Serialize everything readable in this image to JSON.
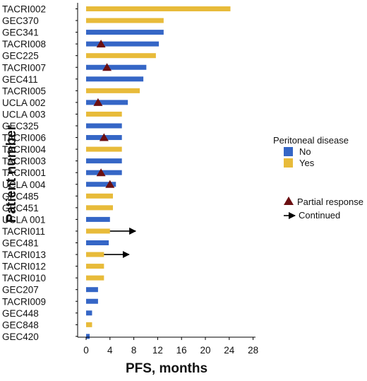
{
  "chart_data": {
    "type": "bar",
    "orientation": "horizontal",
    "xlabel": "PFS, months",
    "ylabel": "Patient number",
    "xlim": [
      0,
      28
    ],
    "xticks": [
      0,
      4,
      8,
      12,
      16,
      20,
      24,
      28
    ],
    "grid": false,
    "colors": {
      "No": "#3566c6",
      "Yes": "#e8bb3a",
      "partial_response": "#6b0f12",
      "continued": "#000000"
    },
    "legend": {
      "title": "Peritoneal disease",
      "entries": [
        "No",
        "Yes"
      ],
      "markers": [
        "Partial response",
        "Continued"
      ],
      "placement": "right"
    },
    "patients": [
      {
        "id": "TACRI002",
        "pfs": 24.2,
        "peritoneal": "Yes",
        "partial_response": null,
        "continued": false
      },
      {
        "id": "GEC370",
        "pfs": 13.0,
        "peritoneal": "Yes",
        "partial_response": null,
        "continued": false
      },
      {
        "id": "GEC341",
        "pfs": 13.0,
        "peritoneal": "No",
        "partial_response": null,
        "continued": false
      },
      {
        "id": "TACRI008",
        "pfs": 12.2,
        "peritoneal": "No",
        "partial_response": 2.5,
        "continued": false
      },
      {
        "id": "GEC225",
        "pfs": 11.7,
        "peritoneal": "Yes",
        "partial_response": null,
        "continued": false
      },
      {
        "id": "TACRI007",
        "pfs": 10.1,
        "peritoneal": "No",
        "partial_response": 3.5,
        "continued": false
      },
      {
        "id": "GEC411",
        "pfs": 9.6,
        "peritoneal": "No",
        "partial_response": null,
        "continued": false
      },
      {
        "id": "TACRI005",
        "pfs": 9.0,
        "peritoneal": "Yes",
        "partial_response": null,
        "continued": false
      },
      {
        "id": "UCLA 002",
        "pfs": 7.0,
        "peritoneal": "No",
        "partial_response": 2.0,
        "continued": false
      },
      {
        "id": "UCLA 003",
        "pfs": 6.0,
        "peritoneal": "Yes",
        "partial_response": null,
        "continued": false
      },
      {
        "id": "GEC325",
        "pfs": 6.0,
        "peritoneal": "No",
        "partial_response": null,
        "continued": false
      },
      {
        "id": "TACRI006",
        "pfs": 6.0,
        "peritoneal": "No",
        "partial_response": 3.0,
        "continued": false
      },
      {
        "id": "TACRI004",
        "pfs": 6.0,
        "peritoneal": "Yes",
        "partial_response": null,
        "continued": false
      },
      {
        "id": "TACRI003",
        "pfs": 6.0,
        "peritoneal": "No",
        "partial_response": null,
        "continued": false
      },
      {
        "id": "TACRI001",
        "pfs": 6.0,
        "peritoneal": "No",
        "partial_response": 2.5,
        "continued": false
      },
      {
        "id": "UCLA 004",
        "pfs": 5.0,
        "peritoneal": "No",
        "partial_response": 4.0,
        "continued": false
      },
      {
        "id": "GEC485",
        "pfs": 4.5,
        "peritoneal": "Yes",
        "partial_response": null,
        "continued": false
      },
      {
        "id": "GEC451",
        "pfs": 4.5,
        "peritoneal": "Yes",
        "partial_response": null,
        "continued": false
      },
      {
        "id": "UCLA 001",
        "pfs": 4.0,
        "peritoneal": "No",
        "partial_response": null,
        "continued": false
      },
      {
        "id": "TACRI011",
        "pfs": 4.0,
        "peritoneal": "Yes",
        "partial_response": null,
        "continued": true,
        "continued_to": 8.3
      },
      {
        "id": "GEC481",
        "pfs": 3.8,
        "peritoneal": "No",
        "partial_response": null,
        "continued": false
      },
      {
        "id": "TACRI013",
        "pfs": 3.0,
        "peritoneal": "Yes",
        "partial_response": null,
        "continued": true,
        "continued_to": 7.2
      },
      {
        "id": "TACRI012",
        "pfs": 3.0,
        "peritoneal": "Yes",
        "partial_response": null,
        "continued": false
      },
      {
        "id": "TACRI010",
        "pfs": 3.0,
        "peritoneal": "Yes",
        "partial_response": null,
        "continued": false
      },
      {
        "id": "GEC207",
        "pfs": 2.0,
        "peritoneal": "No",
        "partial_response": null,
        "continued": false
      },
      {
        "id": "TACRI009",
        "pfs": 2.0,
        "peritoneal": "No",
        "partial_response": null,
        "continued": false
      },
      {
        "id": "GEC448",
        "pfs": 1.0,
        "peritoneal": "No",
        "partial_response": null,
        "continued": false
      },
      {
        "id": "GEC848",
        "pfs": 1.0,
        "peritoneal": "Yes",
        "partial_response": null,
        "continued": false
      },
      {
        "id": "GEC420",
        "pfs": 0.6,
        "peritoneal": "No",
        "partial_response": null,
        "continued": false
      }
    ]
  }
}
